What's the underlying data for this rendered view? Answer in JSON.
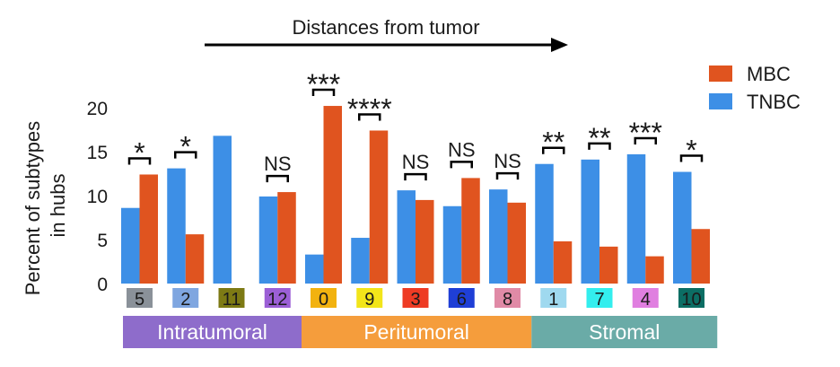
{
  "chart_data": {
    "type": "bar",
    "title": "",
    "arrow_label": "Distances from tumor",
    "ylabel_lines": [
      "Percent of subtypes",
      "in hubs"
    ],
    "xlabel": "",
    "ylim": [
      0,
      20
    ],
    "yticks": [
      0,
      5,
      10,
      15,
      20
    ],
    "grid": false,
    "legend_position": "top-right",
    "categories": [
      "5",
      "2",
      "11",
      "12",
      "0",
      "9",
      "3",
      "6",
      "8",
      "1",
      "7",
      "4",
      "10"
    ],
    "category_colors": [
      "#8a9199",
      "#7fa6e0",
      "#7d7a14",
      "#9b5fd6",
      "#f2b20f",
      "#f2e51a",
      "#ee3b24",
      "#1f3fd6",
      "#e08aa6",
      "#9fd9ef",
      "#33eeee",
      "#e07fe0",
      "#0c6e64"
    ],
    "series": [
      {
        "name": "TNBC",
        "color": "#3d8fe6",
        "values": [
          8.6,
          13.1,
          16.8,
          9.9,
          3.3,
          5.2,
          10.6,
          8.8,
          10.7,
          13.6,
          14.1,
          14.7,
          12.7
        ]
      },
      {
        "name": "MBC",
        "color": "#e0541f",
        "values": [
          12.4,
          5.6,
          0,
          10.4,
          20.2,
          17.4,
          9.5,
          12.0,
          9.2,
          4.8,
          4.2,
          3.1,
          6.2
        ]
      }
    ],
    "significance": [
      "*",
      "*",
      "",
      "NS",
      "***",
      "****",
      "NS",
      "NS",
      "NS",
      "**",
      "**",
      "***",
      "*"
    ],
    "regions": [
      {
        "label": "Intratumoral",
        "start": 0,
        "end": 3,
        "color": "#8e6ccb"
      },
      {
        "label": "Peritumoral",
        "start": 4,
        "end": 8,
        "color": "#f59d3c"
      },
      {
        "label": "Stromal",
        "start": 9,
        "end": 12,
        "color": "#6aaba7"
      }
    ]
  }
}
